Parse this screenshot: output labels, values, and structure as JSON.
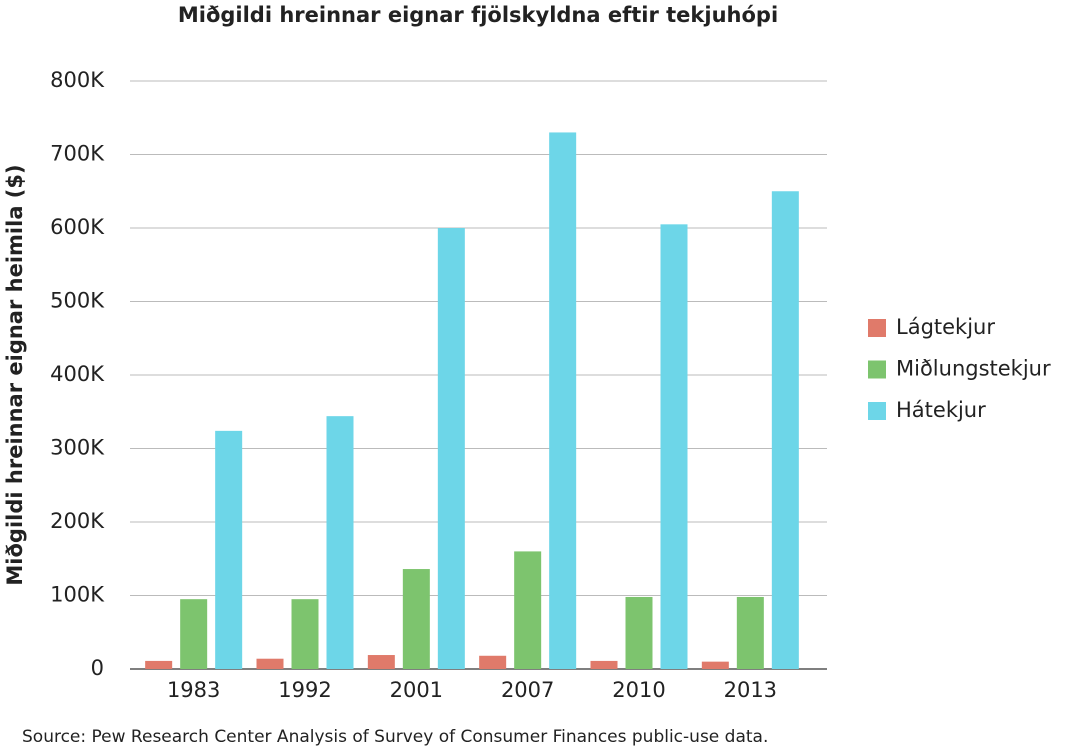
{
  "chart_data": {
    "type": "bar",
    "title": "Miðgildi hreinnar eignar fjölskyldna eftir tekjuhópi",
    "y_label": "Miðgildi hreinnar eignar heimila ($)",
    "source": "Source: Pew Research Center Analysis of Survey of Consumer Finances public-use data.",
    "categories": [
      "1983",
      "1992",
      "2001",
      "2007",
      "2010",
      "2013"
    ],
    "series": [
      {
        "name": "Lágtekjur",
        "color": "#e07a6a",
        "values": [
          11000,
          14000,
          19000,
          18000,
          11000,
          10000
        ]
      },
      {
        "name": "Miðlungstekjur",
        "color": "#7dc46e",
        "values": [
          95000,
          95000,
          136000,
          160000,
          98000,
          98000
        ]
      },
      {
        "name": "Hátekjur",
        "color": "#6dd6e8",
        "values": [
          324000,
          344000,
          600000,
          730000,
          605000,
          650000
        ]
      }
    ],
    "ylim": [
      0,
      800000
    ],
    "yticks": [
      0,
      {
        "value": 100000,
        "label": "100K"
      },
      {
        "value": 200000,
        "label": "200K"
      },
      {
        "value": 300000,
        "label": "300K"
      },
      {
        "value": 400000,
        "label": "400K"
      },
      {
        "value": 500000,
        "label": "500K"
      },
      {
        "value": 600000,
        "label": "600K"
      },
      {
        "value": 700000,
        "label": "700K"
      },
      {
        "value": 800000,
        "label": "800K"
      }
    ],
    "grid": true,
    "legend": "right"
  }
}
